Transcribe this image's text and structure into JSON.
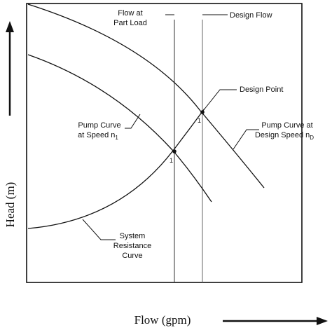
{
  "labels": {
    "flow_part_load_line1": "Flow at",
    "flow_part_load_line2": "Part Load",
    "design_flow": "Design Flow",
    "design_point": "Design Point",
    "pump_curve_n1_line1": "Pump Curve",
    "pump_curve_n1_line2": "at Speed n",
    "pump_curve_n1_sub": "1",
    "pump_curve_nd_line1": "Pump Curve at",
    "pump_curve_nd_line2": "Design Speed n",
    "pump_curve_nd_sub": "D",
    "system_line1": "System",
    "system_line2": "Resistance",
    "system_line3": "Curve",
    "point_1": "1",
    "point_2": "1"
  },
  "axes": {
    "x_title": "Flow (gpm)",
    "y_title": "Head (m)"
  }
}
